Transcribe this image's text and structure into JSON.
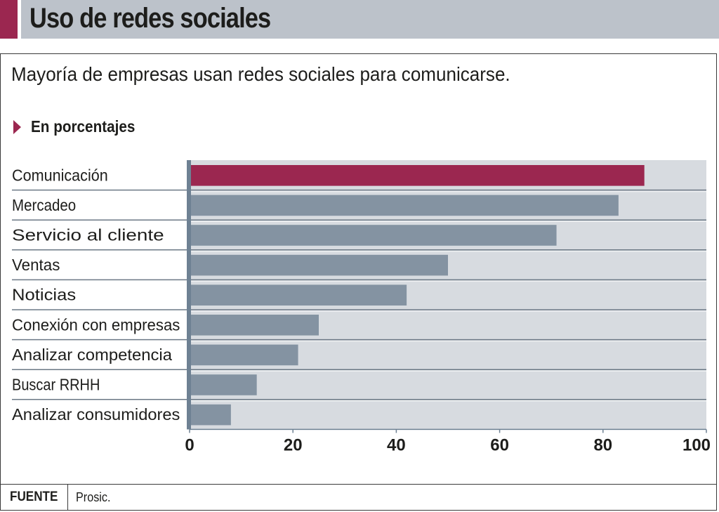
{
  "header": {
    "title": "Uso de redes sociales",
    "subtitle": "Mayoría de empresas usan redes sociales para comunicarse.",
    "unit_label": "En porcentajes"
  },
  "footer": {
    "source_label": "FUENTE",
    "source_value": "Prosic."
  },
  "colors": {
    "highlight": "#9b2750",
    "bar": "#8493a2",
    "plot_background": "#d7dbe0",
    "axis": "#6e8193",
    "title_background": "#bcc2ca"
  },
  "chart_data": {
    "type": "bar",
    "orientation": "horizontal",
    "title": "Uso de redes sociales",
    "subtitle": "Mayoría de empresas usan redes sociales para comunicarse.",
    "xlabel": "",
    "ylabel": "",
    "unit": "En porcentajes",
    "categories": [
      "Comunicación",
      "Mercadeo",
      "Servicio al cliente",
      "Ventas",
      "Noticias",
      "Conexión con empresas",
      "Analizar competencia",
      "Buscar RRHH",
      "Analizar consumidores"
    ],
    "values": [
      88,
      83,
      71,
      50,
      42,
      25,
      21,
      13,
      8
    ],
    "highlighted_index": 0,
    "xlim": [
      0,
      100
    ],
    "xticks": [
      0,
      20,
      40,
      60,
      80,
      100
    ],
    "xtick_labels": [
      "0",
      "20",
      "40",
      "60",
      "80",
      "100"
    ],
    "grid": false,
    "legend": "none",
    "source": "Prosic."
  }
}
